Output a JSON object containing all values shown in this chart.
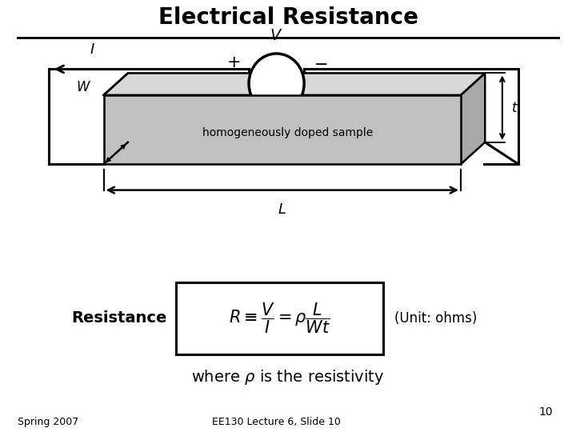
{
  "title": "Electrical Resistance",
  "resistance_label": "Resistance",
  "unit_label": "(Unit: ohms)",
  "sample_label": "homogeneously doped sample",
  "spring_label": "Spring 2007",
  "lecture_label": "EE130 Lecture 6, Slide 10",
  "slide_number": "10",
  "bg_color": "#ffffff",
  "line_color": "#000000",
  "front_face_color": "#c0c0c0",
  "top_face_color": "#d8d8d8",
  "right_face_color": "#a8a8a8",
  "title_fontsize": 20,
  "formula_fontsize": 15,
  "footer_fontsize": 9,
  "xlim": [
    0,
    10
  ],
  "ylim": [
    0,
    7.5
  ]
}
